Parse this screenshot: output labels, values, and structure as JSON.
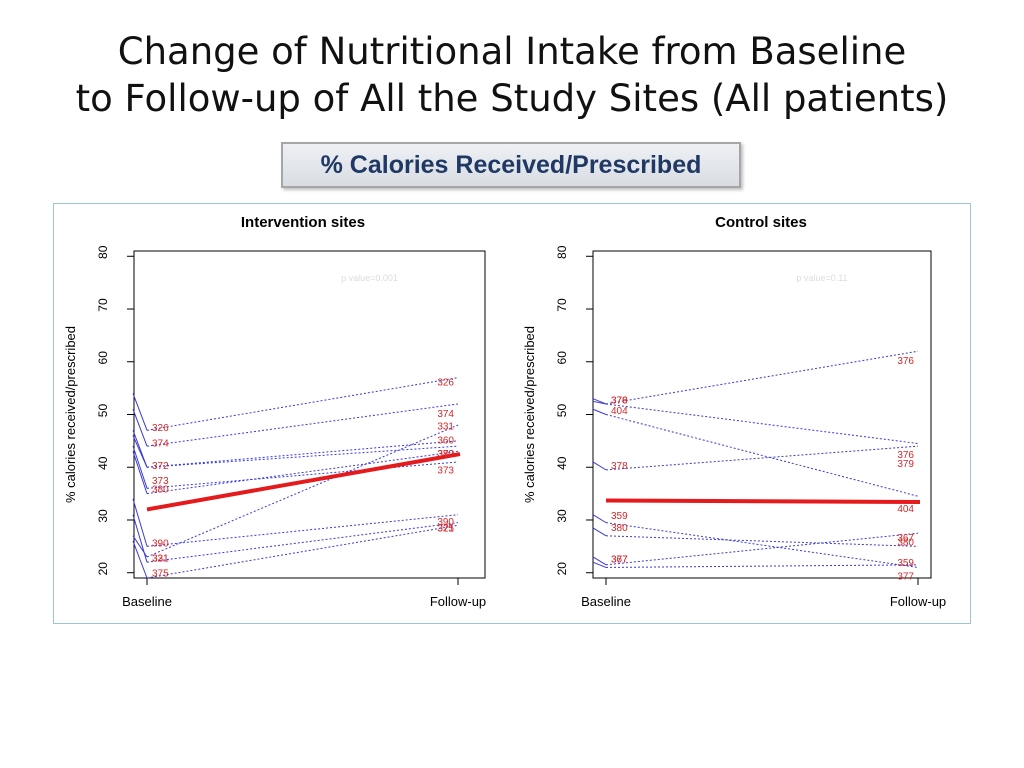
{
  "slide": {
    "title_line1": "Change of Nutritional Intake from Baseline",
    "title_line2": "to Follow-up of All the Study Sites (All patients)",
    "metric_label": "% Calories Received/Prescribed"
  },
  "colors": {
    "patient_line": "#3a3ad6",
    "mean_line": "#e41a1c",
    "label_text": "#d62728",
    "axis": "#000000",
    "frame_border": "#9dc3d6"
  },
  "chart_data": [
    {
      "type": "line",
      "title": "Intervention sites",
      "xlabel": "",
      "ylabel": "% calories received/prescribed",
      "categories": [
        "Baseline",
        "Follow-up"
      ],
      "ylim": [
        19,
        81
      ],
      "yticks": [
        20,
        30,
        40,
        50,
        60,
        70,
        80
      ],
      "annotation": "p value=0.001",
      "mean": {
        "baseline": 32,
        "followup": 42.5
      },
      "series": [
        {
          "name": "326",
          "baseline": 47,
          "followup": 57,
          "pre": 54
        },
        {
          "name": "374",
          "baseline": 44,
          "followup": 52,
          "pre": 51
        },
        {
          "name": "331",
          "baseline": 23,
          "followup": 48,
          "pre": 27
        },
        {
          "name": "360",
          "baseline": 40,
          "followup": 45,
          "pre": 47
        },
        {
          "name": "372",
          "baseline": 40,
          "followup": 44,
          "pre": 46
        },
        {
          "name": "373",
          "baseline": 36,
          "followup": 41,
          "pre": 44
        },
        {
          "name": "380",
          "baseline": 35,
          "followup": 43,
          "pre": 43
        },
        {
          "name": "390",
          "baseline": 25,
          "followup": 31,
          "pre": 34
        },
        {
          "name": "321",
          "baseline": 22,
          "followup": 29.5,
          "pre": 31
        },
        {
          "name": "375",
          "baseline": 19,
          "followup": 29,
          "pre": 26
        }
      ],
      "labels_left": [
        {
          "text": "326",
          "y": 47.4
        },
        {
          "text": "374",
          "y": 44.5
        },
        {
          "text": "372",
          "y": 40.2
        },
        {
          "text": "373",
          "y": 37.4
        },
        {
          "text": "380",
          "y": 35.8
        },
        {
          "text": "390",
          "y": 25.5
        },
        {
          "text": "331",
          "y": 22.7
        },
        {
          "text": "321",
          "y": 22.7
        },
        {
          "text": "375",
          "y": 19.9
        }
      ],
      "labels_right": [
        {
          "text": "326",
          "y": 56.1
        },
        {
          "text": "374",
          "y": 50.1
        },
        {
          "text": "331",
          "y": 47.7
        },
        {
          "text": "360",
          "y": 45.1
        },
        {
          "text": "372",
          "y": 42.5
        },
        {
          "text": "380",
          "y": 42.5
        },
        {
          "text": "373",
          "y": 39.4
        },
        {
          "text": "390",
          "y": 29.6
        },
        {
          "text": "375",
          "y": 28.4
        },
        {
          "text": "321",
          "y": 28.4
        }
      ]
    },
    {
      "type": "line",
      "title": "Control sites",
      "xlabel": "",
      "ylabel": "% calories received/prescribed",
      "categories": [
        "Baseline",
        "Follow-up"
      ],
      "ylim": [
        19,
        81
      ],
      "yticks": [
        20,
        30,
        40,
        50,
        60,
        70,
        80
      ],
      "annotation": "p value=0.11",
      "mean": {
        "baseline": 33.7,
        "followup": 33.4
      },
      "series": [
        {
          "name": "376",
          "baseline": 52,
          "followup": 62,
          "pre": 53
        },
        {
          "name": "379",
          "baseline": 52,
          "followup": 44.5,
          "pre": 52.5
        },
        {
          "name": "404",
          "baseline": 50,
          "followup": 34.5,
          "pre": 51
        },
        {
          "name": "378",
          "baseline": 39.5,
          "followup": 44,
          "pre": 41
        },
        {
          "name": "359",
          "baseline": 29.5,
          "followup": 21,
          "pre": 31
        },
        {
          "name": "380",
          "baseline": 27,
          "followup": 25,
          "pre": 28.5
        },
        {
          "name": "367",
          "baseline": 21.5,
          "followup": 27.5,
          "pre": 23
        },
        {
          "name": "377",
          "baseline": 21,
          "followup": 21.5,
          "pre": 22
        }
      ],
      "labels_left": [
        {
          "text": "376",
          "y": 52.7
        },
        {
          "text": "379",
          "y": 52.7
        },
        {
          "text": "404",
          "y": 50.7
        },
        {
          "text": "378",
          "y": 40.2
        },
        {
          "text": "359",
          "y": 30.8
        },
        {
          "text": "380",
          "y": 28.5
        },
        {
          "text": "367",
          "y": 22.5
        },
        {
          "text": "377",
          "y": 22.5
        }
      ],
      "labels_right": [
        {
          "text": "376",
          "y": 60.1
        },
        {
          "text": "376",
          "y": 42.3
        },
        {
          "text": "379",
          "y": 40.6
        },
        {
          "text": "404",
          "y": 32.1
        },
        {
          "text": "367",
          "y": 26.6
        },
        {
          "text": "380",
          "y": 25.7
        },
        {
          "text": "359",
          "y": 21.8
        },
        {
          "text": "377",
          "y": 19.3
        }
      ]
    }
  ]
}
